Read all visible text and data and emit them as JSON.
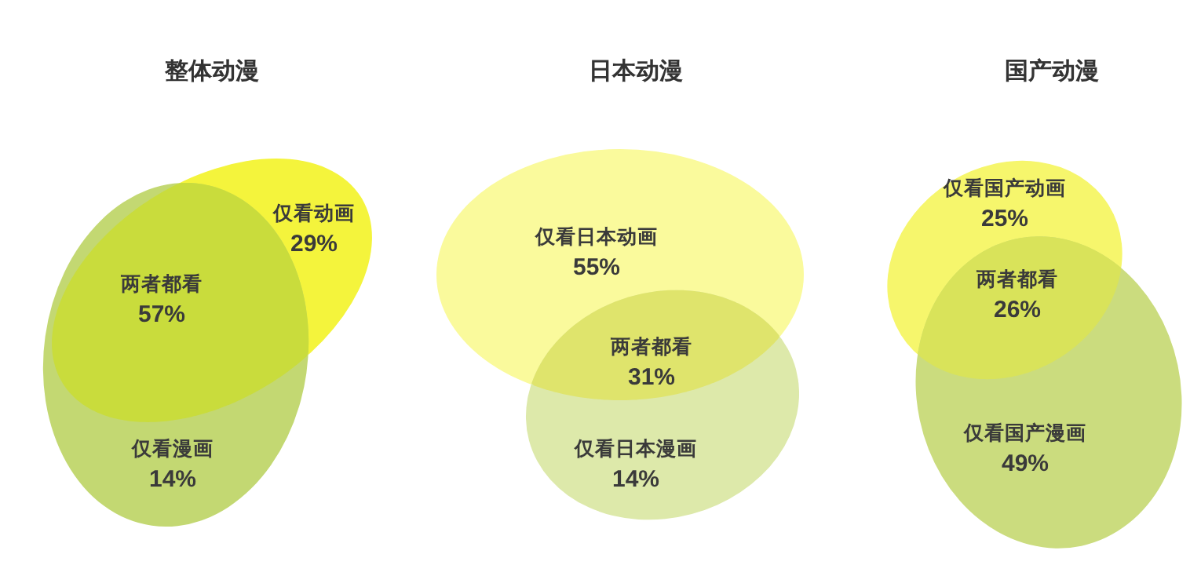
{
  "chart_data": [
    {
      "type": "other",
      "title": "整体动漫",
      "categories": [
        "仅看动画",
        "两者都看",
        "仅看漫画"
      ],
      "values": [
        29,
        57,
        14
      ],
      "value_labels": [
        "29%",
        "57%",
        "14%"
      ],
      "colors": [
        "#f4f43c",
        "#c9dc3c",
        "#c3d872"
      ]
    },
    {
      "type": "other",
      "title": "日本动漫",
      "categories": [
        "仅看日本动画",
        "两者都看",
        "仅看日本漫画"
      ],
      "values": [
        55,
        31,
        14
      ],
      "value_labels": [
        "55%",
        "31%",
        "14%"
      ],
      "colors": [
        "#fafa9c",
        "#dfe46c",
        "#dde9aa"
      ]
    },
    {
      "type": "other",
      "title": "国产动漫",
      "categories": [
        "仅看国产动画",
        "两者都看",
        "仅看国产漫画"
      ],
      "values": [
        25,
        26,
        49
      ],
      "value_labels": [
        "25%",
        "26%",
        "49%"
      ],
      "colors": [
        "#f6f66c",
        "#d9e35a",
        "#cbdc7e"
      ]
    }
  ]
}
